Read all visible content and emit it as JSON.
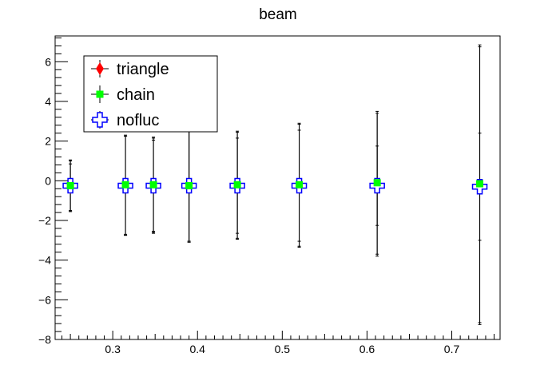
{
  "chart_data": {
    "type": "scatter",
    "title": "beam",
    "xlabel": "",
    "ylabel": "",
    "xlim": [
      0.232,
      0.757
    ],
    "ylim": [
      -8,
      7.3
    ],
    "x_ticks": [
      0.3,
      0.4,
      0.5,
      0.6,
      0.7
    ],
    "x_tick_labels": [
      "0.3",
      "0.4",
      "0.5",
      "0.6",
      "0.7"
    ],
    "y_ticks": [
      -8,
      -6,
      -4,
      -2,
      0,
      2,
      4,
      6
    ],
    "y_tick_labels": [
      "−8",
      "−6",
      "−4",
      "−2",
      "0",
      "2",
      "4",
      "6"
    ],
    "legend_position": "top-left",
    "grid": false,
    "series": [
      {
        "name": "triangle",
        "color": "#ff0000",
        "marker": "diamond",
        "points": [
          {
            "x": 0.25,
            "y": -0.35,
            "err": 1.2
          },
          {
            "x": 0.315,
            "y": -0.25,
            "err": 2.5
          },
          {
            "x": 0.348,
            "y": -0.25,
            "err": 2.4
          },
          {
            "x": 0.39,
            "y": -0.3,
            "err": 2.8
          },
          {
            "x": 0.447,
            "y": -0.25,
            "err": 2.7
          },
          {
            "x": 0.52,
            "y": -0.25,
            "err": 3.1
          },
          {
            "x": 0.612,
            "y": -0.2,
            "err": 3.6
          },
          {
            "x": 0.733,
            "y": -0.25,
            "err": 7.0
          }
        ]
      },
      {
        "name": "chain",
        "color": "#00ff00",
        "marker": "square",
        "points": [
          {
            "x": 0.25,
            "y": -0.25,
            "err": 1.25
          },
          {
            "x": 0.315,
            "y": -0.2,
            "err": 2.5
          },
          {
            "x": 0.348,
            "y": -0.2,
            "err": 2.4
          },
          {
            "x": 0.39,
            "y": -0.25,
            "err": 2.8
          },
          {
            "x": 0.447,
            "y": -0.2,
            "err": 2.7
          },
          {
            "x": 0.52,
            "y": -0.2,
            "err": 3.1
          },
          {
            "x": 0.612,
            "y": -0.1,
            "err": 3.6
          },
          {
            "x": 0.733,
            "y": -0.15,
            "err": 7.0
          }
        ]
      },
      {
        "name": "nofluc",
        "color": "#0000ff",
        "marker": "open-cross",
        "points": [
          {
            "x": 0.25,
            "y": -0.25,
            "err": 1.3
          },
          {
            "x": 0.315,
            "y": -0.25,
            "err": 2.5
          },
          {
            "x": 0.348,
            "y": -0.25,
            "err": 2.3
          },
          {
            "x": 0.39,
            "y": -0.25,
            "err": 2.8
          },
          {
            "x": 0.447,
            "y": -0.25,
            "err": 2.4
          },
          {
            "x": 0.52,
            "y": -0.25,
            "err": 2.8
          },
          {
            "x": 0.612,
            "y": -0.25,
            "err": 2.0
          },
          {
            "x": 0.733,
            "y": -0.3,
            "err": 2.7
          }
        ]
      }
    ]
  }
}
